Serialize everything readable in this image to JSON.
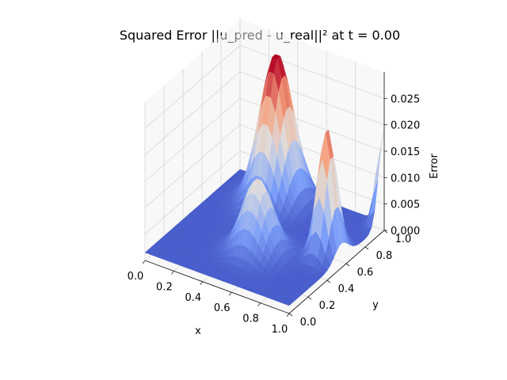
{
  "chart_data": {
    "type": "surface3d",
    "title": "Squared Error ||u_pred - u_real||² at t = 0.00",
    "xlabel": "x",
    "ylabel": "y",
    "zlabel": "Error",
    "xlim": [
      0.0,
      1.0
    ],
    "ylim": [
      0.0,
      1.0
    ],
    "zlim": [
      0.0,
      0.03
    ],
    "xticks": [
      "0.0",
      "0.2",
      "0.4",
      "0.6",
      "0.8",
      "1.0"
    ],
    "yticks": [
      "0.0",
      "0.2",
      "0.4",
      "0.6",
      "0.8",
      "1.0"
    ],
    "zticks": [
      "0.000",
      "0.005",
      "0.010",
      "0.015",
      "0.020",
      "0.025"
    ],
    "colormap": "coolwarm",
    "surface_features": [
      {
        "description": "main peak",
        "x": 0.35,
        "y": 0.85,
        "z": 0.028
      },
      {
        "description": "secondary peak",
        "x": 0.9,
        "y": 0.55,
        "z": 0.024
      },
      {
        "description": "central bump",
        "x": 0.55,
        "y": 0.35,
        "z": 0.014
      },
      {
        "description": "corner rise",
        "x": 1.0,
        "y": 1.0,
        "z": 0.018
      }
    ]
  }
}
